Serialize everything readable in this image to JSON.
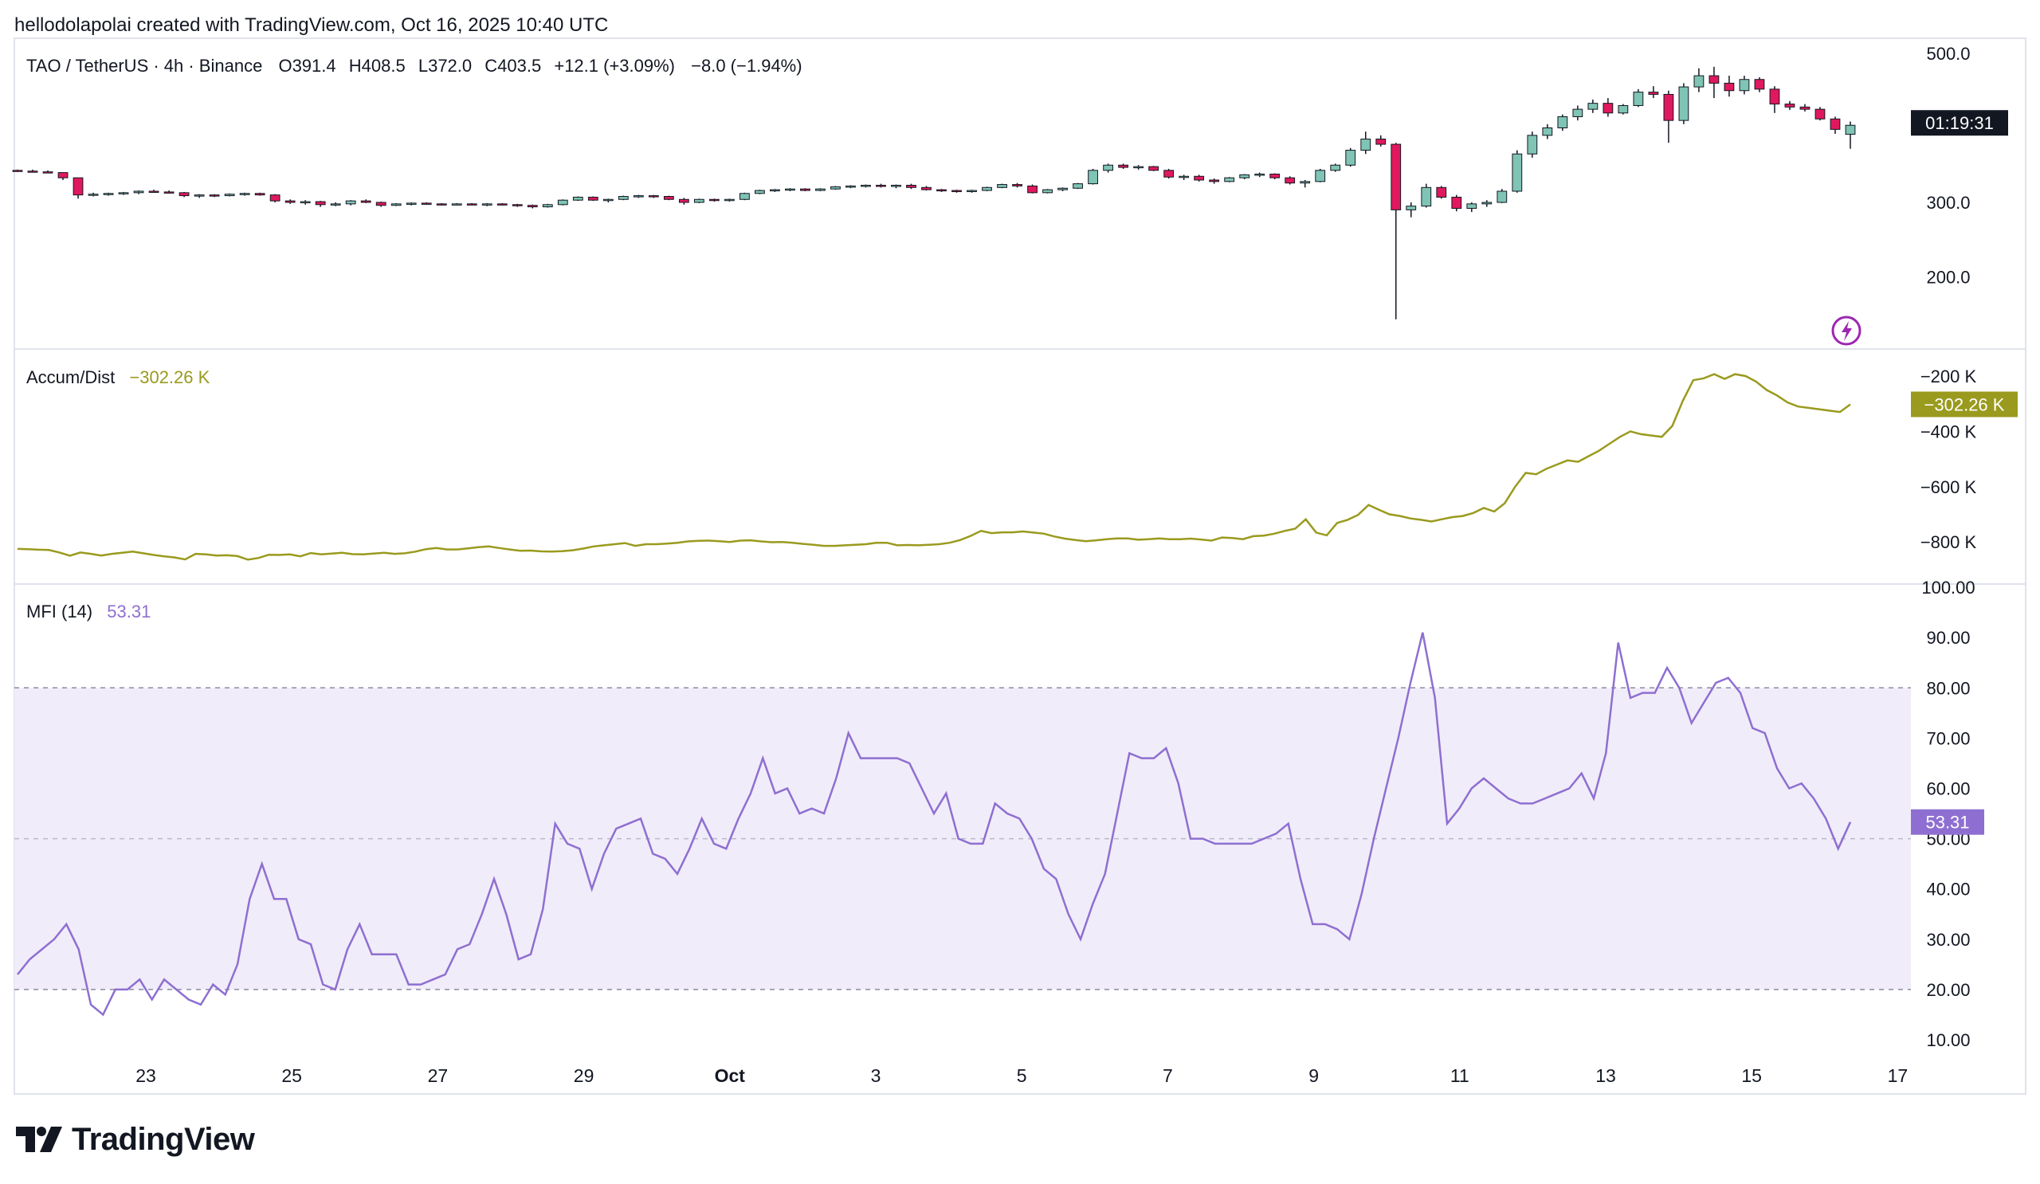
{
  "credit": "hellodolapolai created with TradingView.com, Oct 16, 2025 10:40 UTC",
  "brand": "TradingView",
  "colors": {
    "up": "#7fc4b4",
    "down": "#e0195e",
    "ad_line": "#9a9a1e",
    "mfi_line": "#8e6fd1",
    "mfi_fill": "#f1ecf9",
    "grid_border": "#e0e3eb",
    "text": "#131722"
  },
  "chart_data": [
    {
      "type": "candlestick",
      "title": "TAO / TetherUS · 4h · Binance",
      "legend": {
        "open_label": "O",
        "open": "391.4",
        "high_label": "H",
        "high": "408.5",
        "low_label": "L",
        "low": "372.0",
        "close_label": "C",
        "close": "403.5",
        "change": "+12.1 (+3.09%)",
        "change2": "−8.0 (−1.94%)"
      },
      "yticks": [
        "500.0",
        "300.0",
        "200.0"
      ],
      "ytick_values": [
        500,
        300,
        200
      ],
      "countdown": "01:19:31",
      "candles": [
        [
          343,
          344,
          341,
          342
        ],
        [
          342,
          344,
          340,
          341
        ],
        [
          341,
          343,
          339,
          340
        ],
        [
          340,
          340,
          330,
          333
        ],
        [
          333,
          333,
          305,
          310
        ],
        [
          310,
          313,
          308,
          311
        ],
        [
          311,
          313,
          309,
          312
        ],
        [
          312,
          314,
          310,
          313
        ],
        [
          313,
          316,
          311,
          315
        ],
        [
          315,
          317,
          313,
          314
        ],
        [
          314,
          316,
          312,
          313
        ],
        [
          313,
          314,
          307,
          309
        ],
        [
          309,
          311,
          306,
          310
        ],
        [
          310,
          311,
          307,
          309
        ],
        [
          309,
          312,
          308,
          311
        ],
        [
          311,
          313,
          309,
          312
        ],
        [
          312,
          313,
          309,
          310
        ],
        [
          310,
          311,
          300,
          302
        ],
        [
          302,
          304,
          298,
          300
        ],
        [
          300,
          303,
          297,
          301
        ],
        [
          301,
          302,
          294,
          297
        ],
        [
          297,
          300,
          295,
          298
        ],
        [
          298,
          303,
          296,
          302
        ],
        [
          302,
          304,
          299,
          300
        ],
        [
          300,
          301,
          294,
          296
        ],
        [
          296,
          299,
          295,
          298
        ],
        [
          298,
          300,
          296,
          299
        ],
        [
          299,
          300,
          297,
          298
        ],
        [
          298,
          299,
          296,
          297
        ],
        [
          297,
          299,
          296,
          298
        ],
        [
          298,
          299,
          296,
          297
        ],
        [
          297,
          299,
          295,
          298
        ],
        [
          298,
          299,
          296,
          297
        ],
        [
          297,
          298,
          294,
          296
        ],
        [
          296,
          297,
          292,
          294
        ],
        [
          294,
          298,
          293,
          297
        ],
        [
          297,
          304,
          296,
          303
        ],
        [
          303,
          308,
          302,
          307
        ],
        [
          307,
          308,
          302,
          303
        ],
        [
          303,
          305,
          300,
          304
        ],
        [
          304,
          309,
          303,
          308
        ],
        [
          308,
          310,
          306,
          309
        ],
        [
          309,
          310,
          306,
          308
        ],
        [
          308,
          309,
          303,
          304
        ],
        [
          304,
          306,
          297,
          300
        ],
        [
          300,
          305,
          299,
          304
        ],
        [
          304,
          305,
          301,
          303
        ],
        [
          303,
          305,
          301,
          304
        ],
        [
          304,
          313,
          303,
          312
        ],
        [
          312,
          317,
          311,
          316
        ],
        [
          316,
          318,
          314,
          317
        ],
        [
          317,
          319,
          315,
          318
        ],
        [
          318,
          319,
          315,
          316
        ],
        [
          316,
          319,
          315,
          318
        ],
        [
          318,
          322,
          317,
          321
        ],
        [
          321,
          323,
          319,
          322
        ],
        [
          322,
          324,
          320,
          323
        ],
        [
          323,
          325,
          320,
          322
        ],
        [
          322,
          324,
          319,
          323
        ],
        [
          323,
          325,
          318,
          320
        ],
        [
          320,
          322,
          316,
          317
        ],
        [
          317,
          318,
          314,
          316
        ],
        [
          316,
          317,
          313,
          315
        ],
        [
          315,
          317,
          313,
          316
        ],
        [
          316,
          321,
          315,
          320
        ],
        [
          320,
          325,
          319,
          324
        ],
        [
          324,
          326,
          320,
          322
        ],
        [
          322,
          324,
          312,
          313
        ],
        [
          313,
          318,
          312,
          317
        ],
        [
          317,
          320,
          315,
          319
        ],
        [
          319,
          326,
          318,
          325
        ],
        [
          325,
          345,
          324,
          343
        ],
        [
          343,
          352,
          340,
          350
        ],
        [
          350,
          352,
          345,
          347
        ],
        [
          347,
          350,
          344,
          348
        ],
        [
          348,
          349,
          342,
          343
        ],
        [
          343,
          345,
          332,
          334
        ],
        [
          334,
          337,
          330,
          335
        ],
        [
          335,
          337,
          328,
          330
        ],
        [
          330,
          332,
          325,
          328
        ],
        [
          328,
          334,
          327,
          333
        ],
        [
          333,
          338,
          331,
          337
        ],
        [
          337,
          340,
          334,
          338
        ],
        [
          338,
          339,
          331,
          333
        ],
        [
          333,
          335,
          324,
          326
        ],
        [
          326,
          330,
          320,
          328
        ],
        [
          328,
          345,
          327,
          343
        ],
        [
          343,
          352,
          341,
          350
        ],
        [
          350,
          373,
          348,
          370
        ],
        [
          370,
          395,
          365,
          385
        ],
        [
          385,
          390,
          375,
          378
        ],
        [
          378,
          380,
          143,
          290
        ],
        [
          290,
          300,
          280,
          295
        ],
        [
          295,
          325,
          293,
          320
        ],
        [
          320,
          322,
          305,
          307
        ],
        [
          307,
          310,
          288,
          292
        ],
        [
          292,
          300,
          287,
          298
        ],
        [
          298,
          303,
          294,
          300
        ],
        [
          300,
          318,
          299,
          315
        ],
        [
          315,
          370,
          313,
          365
        ],
        [
          365,
          395,
          360,
          390
        ],
        [
          390,
          405,
          385,
          400
        ],
        [
          400,
          418,
          396,
          415
        ],
        [
          415,
          430,
          410,
          425
        ],
        [
          425,
          438,
          420,
          433
        ],
        [
          433,
          440,
          415,
          420
        ],
        [
          420,
          432,
          418,
          430
        ],
        [
          430,
          452,
          428,
          448
        ],
        [
          448,
          456,
          440,
          445
        ],
        [
          445,
          450,
          380,
          410
        ],
        [
          410,
          460,
          405,
          455
        ],
        [
          455,
          480,
          448,
          470
        ],
        [
          470,
          482,
          440,
          460
        ],
        [
          460,
          470,
          442,
          450
        ],
        [
          450,
          470,
          445,
          465
        ],
        [
          465,
          468,
          448,
          452
        ],
        [
          452,
          456,
          420,
          432
        ],
        [
          432,
          436,
          424,
          428
        ],
        [
          428,
          432,
          422,
          425
        ],
        [
          425,
          428,
          410,
          412
        ],
        [
          412,
          415,
          392,
          398
        ],
        [
          391.4,
          408.5,
          372.0,
          403.5
        ]
      ]
    },
    {
      "type": "line",
      "title": "Accum/Dist",
      "value_label": "−302.26 K",
      "yticks": [
        "−200 K",
        "−400 K",
        "−600 K",
        "−800 K"
      ],
      "ytick_values": [
        -200,
        -400,
        -600,
        -800
      ],
      "units": "K",
      "values": [
        -825,
        -826,
        -828,
        -829,
        -838,
        -850,
        -838,
        -843,
        -849,
        -843,
        -839,
        -835,
        -841,
        -847,
        -852,
        -856,
        -863,
        -843,
        -845,
        -849,
        -848,
        -851,
        -864,
        -858,
        -846,
        -847,
        -845,
        -852,
        -840,
        -845,
        -842,
        -839,
        -844,
        -845,
        -842,
        -839,
        -843,
        -841,
        -835,
        -826,
        -822,
        -827,
        -827,
        -823,
        -819,
        -816,
        -822,
        -827,
        -832,
        -831,
        -834,
        -835,
        -833,
        -830,
        -824,
        -816,
        -812,
        -808,
        -804,
        -814,
        -808,
        -808,
        -806,
        -803,
        -798,
        -796,
        -795,
        -797,
        -800,
        -795,
        -794,
        -798,
        -801,
        -800,
        -803,
        -807,
        -810,
        -814,
        -814,
        -812,
        -810,
        -808,
        -803,
        -803,
        -812,
        -811,
        -812,
        -810,
        -808,
        -803,
        -793,
        -778,
        -760,
        -768,
        -765,
        -765,
        -762,
        -766,
        -770,
        -780,
        -788,
        -793,
        -797,
        -794,
        -790,
        -787,
        -787,
        -792,
        -790,
        -787,
        -790,
        -790,
        -788,
        -791,
        -795,
        -784,
        -786,
        -790,
        -779,
        -777,
        -770,
        -760,
        -752,
        -718,
        -766,
        -776,
        -731,
        -720,
        -702,
        -666,
        -684,
        -700,
        -706,
        -715,
        -720,
        -726,
        -718,
        -710,
        -706,
        -695,
        -677,
        -690,
        -660,
        -600,
        -550,
        -555,
        -535,
        -520,
        -505,
        -510,
        -490,
        -470,
        -445,
        -420,
        -400,
        -410,
        -415,
        -420,
        -380,
        -290,
        -215,
        -208,
        -193,
        -210,
        -193,
        -200,
        -220,
        -250,
        -270,
        -295,
        -310,
        -315,
        -320,
        -325,
        -330,
        -302.26
      ]
    },
    {
      "type": "line",
      "title": "MFI (14)",
      "value_label": "53.31",
      "yticks": [
        "100.00",
        "90.00",
        "80.00",
        "70.00",
        "60.00",
        "50.00",
        "40.00",
        "30.00",
        "20.00",
        "10.00"
      ],
      "ytick_values": [
        100,
        90,
        80,
        70,
        60,
        50,
        40,
        30,
        20,
        10
      ],
      "band": [
        20,
        80
      ],
      "midline": 50,
      "values": [
        23,
        26,
        28,
        30,
        33,
        28,
        17,
        15,
        20,
        20,
        22,
        18,
        22,
        20,
        18,
        17,
        21,
        19,
        25,
        38,
        45,
        38,
        38,
        30,
        29,
        21,
        20,
        28,
        33,
        27,
        27,
        27,
        21,
        21,
        22,
        23,
        28,
        29,
        35,
        42,
        35,
        26,
        27,
        36,
        53,
        49,
        48,
        40,
        47,
        52,
        53,
        54,
        47,
        46,
        43,
        48,
        54,
        49,
        48,
        54,
        59,
        66,
        59,
        60,
        55,
        56,
        55,
        62,
        71,
        66,
        66,
        66,
        66,
        65,
        60,
        55,
        59,
        50,
        49,
        49,
        57,
        55,
        54,
        50,
        44,
        42,
        35,
        30,
        37,
        43,
        55,
        67,
        66,
        66,
        68,
        61,
        50,
        50,
        49,
        49,
        49,
        49,
        50,
        51,
        53,
        42,
        33,
        33,
        32,
        30,
        39,
        50,
        60,
        70,
        81,
        91,
        78,
        53,
        56,
        60,
        62,
        60,
        58,
        57,
        57,
        58,
        59,
        60,
        63,
        58,
        67,
        89,
        78,
        79,
        79,
        84,
        80,
        73,
        77,
        81,
        82,
        79,
        72,
        71,
        64,
        60,
        61,
        58,
        54,
        48,
        53.31
      ]
    }
  ],
  "x_axis": {
    "ticks": [
      "23",
      "25",
      "27",
      "29",
      "Oct",
      "3",
      "5",
      "7",
      "9",
      "11",
      "13",
      "15",
      "17"
    ],
    "tick_positions": [
      23,
      25,
      27,
      29,
      31,
      33,
      35,
      37,
      39,
      41,
      43,
      45,
      47
    ]
  }
}
